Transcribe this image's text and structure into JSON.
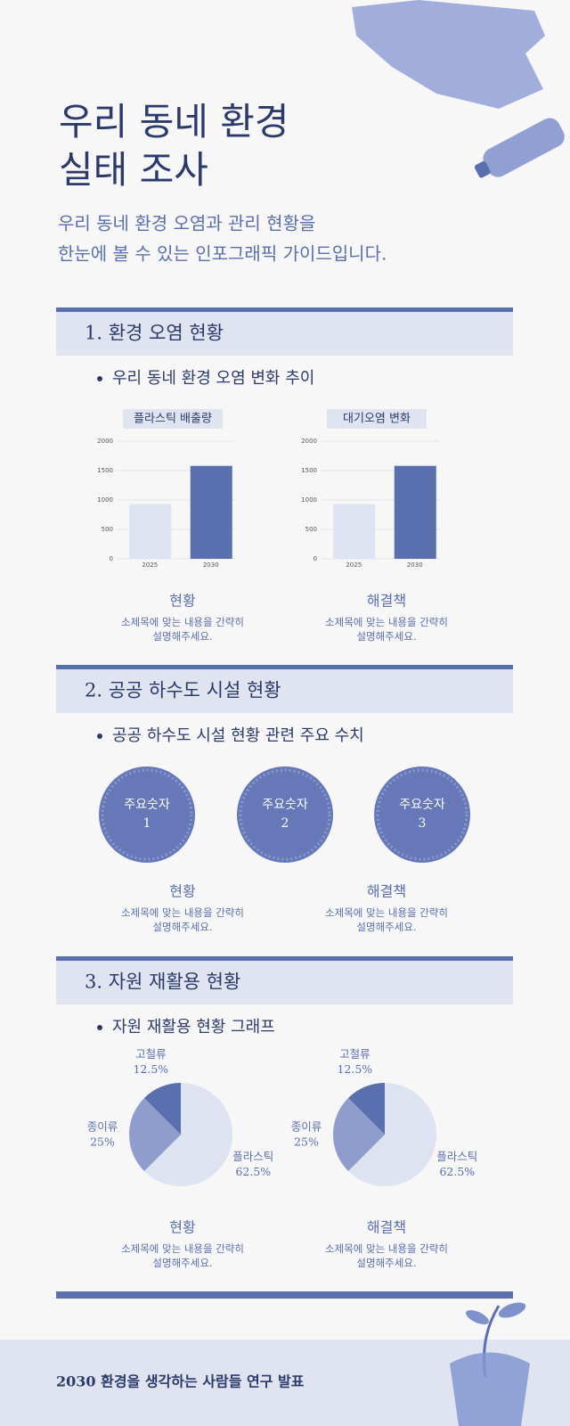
{
  "header": {
    "title": [
      "우리 동네 환경",
      "실태 조사"
    ],
    "subtitle": [
      "우리 동네 환경 오염과 관리 현황을",
      "한눈에 볼 수 있는 인포그래픽 가이드입니다."
    ]
  },
  "sections": [
    {
      "heading": "1. 환경 오염 현황",
      "bullet": "우리 동네 환경 오염 변화 추이",
      "charts": [
        {
          "type": "bar",
          "title": "플라스틱 배출량",
          "categories": [
            "2025",
            "2030"
          ],
          "values": [
            930,
            1580
          ],
          "colors": [
            "#dde3f0",
            "#5a6fae"
          ],
          "ylim": [
            0,
            2000
          ],
          "yticks": [
            0,
            500,
            1000,
            1500,
            2000
          ],
          "grid": true
        },
        {
          "type": "bar",
          "title": "대기오염 변화",
          "categories": [
            "2025",
            "2030"
          ],
          "values": [
            930,
            1580
          ],
          "colors": [
            "#dde3f0",
            "#5a6fae"
          ],
          "ylim": [
            0,
            2000
          ],
          "yticks": [
            0,
            500,
            1000,
            1500,
            2000
          ],
          "grid": true
        }
      ],
      "captions": [
        {
          "title": "현황",
          "text": [
            "소제목에 맞는 내용을 간략히",
            "설명해주세요."
          ]
        },
        {
          "title": "해결책",
          "text": [
            "소제목에 맞는 내용을 간략히",
            "설명해주세요."
          ]
        }
      ]
    },
    {
      "heading": "2. 공공 하수도 시설 현황",
      "bullet": "공공 하수도 시설 현황 관련 주요 수치",
      "figures": [
        {
          "label": "주요숫자",
          "number": "1"
        },
        {
          "label": "주요숫자",
          "number": "2"
        },
        {
          "label": "주요숫자",
          "number": "3"
        }
      ],
      "captions": [
        {
          "title": "현황",
          "text": [
            "소제목에 맞는 내용을 간략히",
            "설명해주세요."
          ]
        },
        {
          "title": "해결책",
          "text": [
            "소제목에 맞는 내용을 간략히",
            "설명해주세요."
          ]
        }
      ]
    },
    {
      "heading": "3. 자원 재활용 현황",
      "bullet": "자원 재활용 현황 그래프",
      "charts": [
        {
          "type": "pie",
          "categories": [
            "플라스틱",
            "종이류",
            "고철류"
          ],
          "values": [
            62.5,
            25,
            12.5
          ],
          "value_labels": [
            "62.5%",
            "25%",
            "12.5%"
          ],
          "colors": [
            "#dde3f0",
            "#8e9dcc",
            "#5a6fae"
          ]
        },
        {
          "type": "pie",
          "categories": [
            "플라스틱",
            "종이류",
            "고철류"
          ],
          "values": [
            62.5,
            25,
            12.5
          ],
          "value_labels": [
            "62.5%",
            "25%",
            "12.5%"
          ],
          "colors": [
            "#dde3f0",
            "#8e9dcc",
            "#5a6fae"
          ]
        }
      ],
      "captions": [
        {
          "title": "현황",
          "text": [
            "소제목에 맞는 내용을 간략히",
            "설명해주세요."
          ]
        },
        {
          "title": "해결책",
          "text": [
            "소제목에 맞는 내용을 간략히",
            "설명해주세요."
          ]
        }
      ]
    }
  ],
  "footer": "2030 환경을 생각하는 사람들 연구 발표"
}
